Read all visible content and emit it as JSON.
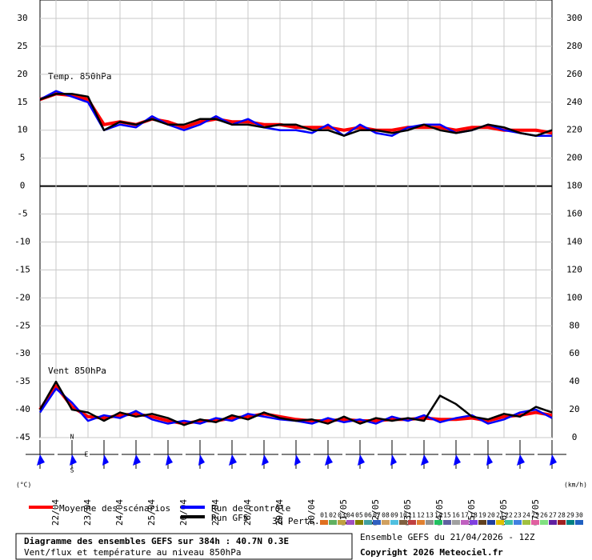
{
  "chart_data": {
    "type": "line",
    "title": "Diagramme des ensembles GEFS sur 384h : 40.7N 0.3E",
    "subtitle": "Vent/flux et température au niveau 850hPa",
    "run_info": "Ensemble GEFS du 21/04/2026 - 12Z",
    "copyright": "Copyright 2026 Meteociel.fr",
    "annotations": [
      "Temp. 850hPa",
      "Vent 850hPa"
    ],
    "y_label": "(°C)",
    "y2_label": "(km/h)",
    "rose_labels": [
      "N",
      "E",
      "S"
    ],
    "grid": true,
    "x": [
      0,
      12,
      24,
      36,
      48,
      60,
      72,
      84,
      96,
      108,
      120,
      132,
      144,
      156,
      168,
      180,
      192,
      204,
      216,
      228,
      240,
      252,
      264,
      276,
      288,
      300,
      312,
      324,
      336,
      348,
      360,
      372,
      384
    ],
    "xlim": [
      0,
      384
    ],
    "xticks": [
      {
        "value": 12,
        "label": "22/04"
      },
      {
        "value": 36,
        "label": "23/04"
      },
      {
        "value": 60,
        "label": "24/04"
      },
      {
        "value": 84,
        "label": "25/04"
      },
      {
        "value": 108,
        "label": "26/04"
      },
      {
        "value": 132,
        "label": "27/04"
      },
      {
        "value": 156,
        "label": "28/04"
      },
      {
        "value": 180,
        "label": "29/04"
      },
      {
        "value": 204,
        "label": "30/04"
      },
      {
        "value": 228,
        "label": "01/05"
      },
      {
        "value": 252,
        "label": "02/05"
      },
      {
        "value": 276,
        "label": "03/05"
      },
      {
        "value": 300,
        "label": "04/05"
      },
      {
        "value": 324,
        "label": "05/05"
      },
      {
        "value": 348,
        "label": "06/05"
      },
      {
        "value": 372,
        "label": "07/05"
      }
    ],
    "ylim": [
      -45,
      30
    ],
    "yticks": [
      -45,
      -40,
      -35,
      -30,
      -25,
      -20,
      -15,
      -10,
      -5,
      0,
      5,
      10,
      15,
      20,
      25,
      30
    ],
    "y2lim": [
      0,
      300
    ],
    "y2ticks": [
      0,
      20,
      40,
      60,
      80,
      100,
      120,
      140,
      160,
      180,
      200,
      220,
      240,
      260,
      280,
      300
    ],
    "series": [
      {
        "name": "Moyenne des scénarios",
        "color": "#ff0000",
        "values": [
          15.5,
          16.5,
          16.2,
          15.5,
          11,
          11.5,
          11,
          12,
          11.5,
          10.5,
          11.5,
          12,
          11.5,
          11.5,
          11,
          11,
          10.5,
          10.5,
          10.5,
          10,
          10.5,
          10,
          10,
          10.5,
          10.5,
          10.5,
          10,
          10.5,
          10.5,
          10,
          10,
          10,
          9.5
        ]
      },
      {
        "name": "Run de contrôle",
        "color": "#0000ff",
        "values": [
          15.5,
          17,
          16,
          15,
          10,
          11,
          10.5,
          12.5,
          11,
          10,
          11,
          12.5,
          11,
          12,
          10.5,
          10,
          10,
          9.5,
          11,
          9,
          11,
          9.5,
          9,
          10.5,
          11,
          11,
          9.5,
          10,
          11,
          10,
          9.5,
          9,
          9
        ]
      },
      {
        "name": "Run GFS",
        "color": "#000000",
        "values": [
          15.5,
          16.5,
          16.5,
          16,
          10,
          11.5,
          11,
          12,
          11,
          11,
          12,
          12,
          11,
          11,
          10.5,
          11,
          11,
          10,
          10,
          9,
          10,
          10,
          9.5,
          10,
          11,
          10,
          9.5,
          10,
          11,
          10.5,
          9.5,
          9,
          10
        ]
      },
      {
        "color": "#ff0000",
        "axis": "y2",
        "values": [
          20,
          37,
          22,
          15,
          14,
          16,
          17,
          15,
          12,
          10,
          12,
          12,
          14,
          15,
          17,
          15,
          13,
          12,
          12,
          13,
          12,
          12,
          13,
          13,
          14,
          13,
          13,
          14,
          12,
          15,
          16,
          18,
          16
        ]
      },
      {
        "color": "#0000ff",
        "axis": "y2",
        "values": [
          18,
          35,
          25,
          12,
          16,
          14,
          19,
          13,
          10,
          12,
          10,
          14,
          12,
          17,
          15,
          13,
          12,
          10,
          14,
          11,
          13,
          10,
          15,
          12,
          16,
          11,
          14,
          16,
          10,
          13,
          18,
          20,
          14
        ]
      },
      {
        "color": "#000000",
        "axis": "y2",
        "values": [
          20,
          40,
          20,
          18,
          12,
          18,
          15,
          17,
          14,
          9,
          13,
          11,
          16,
          13,
          18,
          14,
          12,
          13,
          10,
          15,
          10,
          14,
          12,
          14,
          12,
          30,
          24,
          15,
          13,
          17,
          15,
          22,
          18
        ]
      }
    ],
    "perturbation_title": "30 Perts.",
    "perturbations": [
      {
        "name": "01",
        "color": "#e07020"
      },
      {
        "name": "02",
        "color": "#60b060"
      },
      {
        "name": "03",
        "color": "#c0a040"
      },
      {
        "name": "04",
        "color": "#a050c0"
      },
      {
        "name": "05",
        "color": "#808000"
      },
      {
        "name": "06",
        "color": "#40a0a0"
      },
      {
        "name": "07",
        "color": "#3060c0"
      },
      {
        "name": "08",
        "color": "#d0a060"
      },
      {
        "name": "09",
        "color": "#50c0e0"
      },
      {
        "name": "10",
        "color": "#806040"
      },
      {
        "name": "11",
        "color": "#c04040"
      },
      {
        "name": "12",
        "color": "#e08030"
      },
      {
        "name": "13",
        "color": "#909090"
      },
      {
        "name": "14",
        "color": "#20c060"
      },
      {
        "name": "15",
        "color": "#6060a0"
      },
      {
        "name": "16",
        "color": "#a0a0a0"
      },
      {
        "name": "17",
        "color": "#c060c0"
      },
      {
        "name": "18",
        "color": "#8040e0"
      },
      {
        "name": "19",
        "color": "#604020"
      },
      {
        "name": "20",
        "color": "#2040a0"
      },
      {
        "name": "21",
        "color": "#e0c000"
      },
      {
        "name": "22",
        "color": "#40c0a0"
      },
      {
        "name": "23",
        "color": "#4080e0"
      },
      {
        "name": "24",
        "color": "#a0c040"
      },
      {
        "name": "25",
        "color": "#e060a0"
      },
      {
        "name": "26",
        "color": "#80e080"
      },
      {
        "name": "27",
        "color": "#6020a0"
      },
      {
        "name": "28",
        "color": "#a02020"
      },
      {
        "name": "29",
        "color": "#008080"
      },
      {
        "name": "30",
        "color": "#2060c0"
      }
    ]
  }
}
